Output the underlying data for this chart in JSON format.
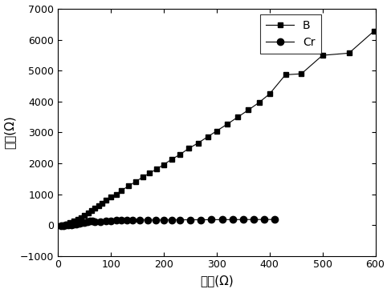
{
  "B_x": [
    10,
    17,
    23,
    30,
    37,
    43,
    50,
    57,
    63,
    70,
    77,
    83,
    90,
    100,
    110,
    120,
    133,
    147,
    160,
    173,
    187,
    200,
    215,
    230,
    247,
    265,
    283,
    300,
    320,
    340,
    360,
    380,
    400,
    430,
    460,
    500,
    550,
    597
  ],
  "B_y": [
    0,
    30,
    70,
    120,
    180,
    240,
    310,
    390,
    460,
    540,
    630,
    710,
    800,
    900,
    1000,
    1120,
    1260,
    1410,
    1550,
    1680,
    1820,
    1960,
    2130,
    2280,
    2480,
    2660,
    2860,
    3050,
    3270,
    3500,
    3730,
    3970,
    4250,
    4870,
    4900,
    5500,
    5570,
    6280
  ],
  "Cr_x": [
    5,
    10,
    15,
    20,
    25,
    30,
    35,
    40,
    45,
    50,
    55,
    60,
    65,
    70,
    80,
    90,
    100,
    110,
    120,
    130,
    140,
    155,
    170,
    185,
    200,
    215,
    230,
    250,
    270,
    290,
    310,
    330,
    350,
    370,
    390,
    410
  ],
  "Cr_y": [
    -30,
    -20,
    -10,
    0,
    10,
    20,
    30,
    50,
    70,
    90,
    110,
    120,
    120,
    110,
    100,
    120,
    140,
    150,
    160,
    160,
    165,
    165,
    165,
    160,
    165,
    168,
    168,
    170,
    170,
    172,
    175,
    175,
    177,
    178,
    178,
    180
  ],
  "xlabel": "实部(Ω)",
  "ylabel": "虚部(Ω)",
  "xlim": [
    0,
    600
  ],
  "ylim": [
    -1000,
    7000
  ],
  "xticks": [
    0,
    100,
    200,
    300,
    400,
    500,
    600
  ],
  "yticks": [
    -1000,
    0,
    1000,
    2000,
    3000,
    4000,
    5000,
    6000,
    7000
  ],
  "legend_B": "B",
  "legend_Cr": "Cr",
  "line_color": "#000000",
  "marker_B": "s",
  "marker_Cr": "o",
  "markersize_B": 5,
  "markersize_Cr": 6,
  "linewidth": 0.8,
  "figsize": [
    4.82,
    3.76
  ],
  "dpi": 100
}
